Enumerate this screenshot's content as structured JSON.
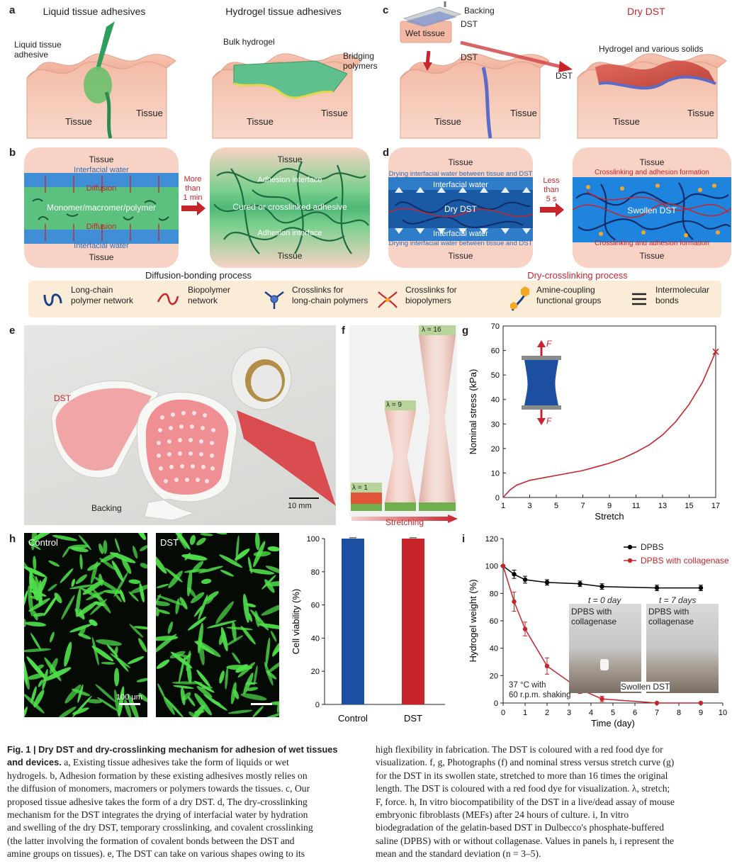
{
  "panels": {
    "a": {
      "letter": "a",
      "liquid_title": "Liquid tissue adhesives",
      "hydrogel_title": "Hydrogel tissue adhesives",
      "liquid_label": "Liquid tissue\nadhesive",
      "bulk_hydrogel": "Bulk hydrogel",
      "bridging": "Bridging\npolymers",
      "tissue": "Tissue"
    },
    "c": {
      "letter": "c",
      "backing": "Backing",
      "dst": "DST",
      "wet_tissue": "Wet tissue",
      "dry_dst": "Dry DST",
      "hydrogel_solids": "Hydrogel and various solids",
      "tissue": "Tissue"
    },
    "b": {
      "letter": "b",
      "tissue": "Tissue",
      "interfacial_water": "Interfacial water",
      "diffusion": "Diffusion",
      "monomer": "Monomer/macromer/polymer",
      "arrow_text": "More\nthan\n1 min",
      "adhesion_interface": "Adhesion interface",
      "cured": "Cured or crosslinked adhesive",
      "process": "Diffusion-bonding process"
    },
    "d": {
      "letter": "d",
      "tissue": "Tissue",
      "drying": "Drying interfacial water between tissue and DST",
      "interfacial_water": "Interfacial water",
      "dry_dst": "Dry DST",
      "arrow_text": "Less\nthan\n5 s",
      "crosslinking": "Crosslinking and adhesion formation",
      "swollen": "Swollen DST",
      "process": "Dry-crosslinking process"
    },
    "legend": [
      {
        "icon": "long-chain-icon",
        "label": "Long-chain\npolymer network"
      },
      {
        "icon": "biopolymer-icon",
        "label": "Biopolymer\nnetwork"
      },
      {
        "icon": "crosslink-long-icon",
        "label": "Crosslinks for\nlong-chain polymers"
      },
      {
        "icon": "crosslink-bio-icon",
        "label": "Crosslinks for\nbiopolymers"
      },
      {
        "icon": "amine-coupling-icon",
        "label": "Amine-coupling\nfunctional groups"
      },
      {
        "icon": "intermolecular-icon",
        "label": "Intermolecular\nbonds"
      }
    ],
    "e": {
      "letter": "e",
      "dst": "DST",
      "backing": "Backing",
      "scale": "10 mm"
    },
    "f": {
      "letter": "f",
      "l1": "λ = 1",
      "l9": "λ = 9",
      "l16": "λ = 16",
      "stretching": "Stretching"
    },
    "g": {
      "letter": "g",
      "F": "F"
    },
    "h": {
      "letter": "h",
      "control": "Control",
      "dst": "DST",
      "scale": "100 μm"
    },
    "i": {
      "letter": "i",
      "t0": "t = 0 day",
      "t7": "t = 7 days",
      "photo_label": "DPBS with\ncollagenase",
      "swollen": "Swollen DST",
      "condition": "37 °C with\n60 r.p.m. shaking"
    }
  },
  "chart_data": [
    {
      "id": "g",
      "type": "line",
      "xlabel": "Stretch",
      "ylabel": "Nominal stress (kPa)",
      "xlim": [
        1,
        17
      ],
      "ylim": [
        0,
        70
      ],
      "xticks": [
        1,
        3,
        5,
        7,
        9,
        11,
        13,
        15,
        17
      ],
      "yticks": [
        0,
        10,
        20,
        30,
        40,
        50,
        60,
        70
      ],
      "series": [
        {
          "x": [
            1,
            1.5,
            2,
            3,
            4,
            5,
            6,
            7,
            8,
            9,
            10,
            11,
            12,
            13,
            14,
            15,
            16,
            17
          ],
          "y": [
            0,
            3,
            5,
            7,
            8,
            9,
            10,
            11,
            12.5,
            14,
            16,
            18.5,
            21.5,
            25.5,
            31,
            38,
            47,
            59.5
          ]
        }
      ],
      "color": "#c8242b"
    },
    {
      "id": "h",
      "type": "bar",
      "categories": [
        "Control",
        "DST"
      ],
      "values": [
        100,
        100
      ],
      "errors": [
        0.5,
        0.5
      ],
      "colors": [
        "#1c4fa0",
        "#c8242b"
      ],
      "ylabel": "Cell viability (%)",
      "ylim": [
        0,
        100
      ],
      "yticks": [
        0,
        20,
        40,
        60,
        80,
        100
      ]
    },
    {
      "id": "i",
      "type": "line",
      "xlabel": "Time (day)",
      "ylabel": "Hydrogel weight (%)",
      "xlim": [
        0,
        10
      ],
      "ylim": [
        0,
        120
      ],
      "xticks": [
        0,
        1,
        2,
        3,
        4,
        5,
        6,
        7,
        8,
        9,
        10
      ],
      "yticks": [
        0,
        20,
        40,
        60,
        80,
        100,
        120
      ],
      "series": [
        {
          "name": "DPBS",
          "color": "#000000",
          "x": [
            0,
            0.5,
            1,
            2,
            3.5,
            4.5,
            7,
            9
          ],
          "y": [
            100,
            94,
            90,
            88,
            87,
            85,
            84,
            84
          ],
          "err": [
            0,
            3,
            2.5,
            2,
            2,
            2,
            2,
            2
          ]
        },
        {
          "name": "DPBS with collagenase",
          "color": "#c8242b",
          "x": [
            0,
            0.5,
            1,
            2,
            3.5,
            4.5,
            7,
            9
          ],
          "y": [
            100,
            74,
            54,
            27,
            10,
            3,
            0,
            0
          ],
          "err": [
            0,
            7,
            5,
            6,
            3,
            2,
            0,
            0
          ]
        }
      ]
    }
  ],
  "caption": {
    "left": [
      {
        "b": "Fig. 1 | Dry DST and dry-crosslinking mechanism for adhesion of wet tissues",
        "t": ""
      },
      {
        "b": "and devices.",
        "t": " a, Existing tissue adhesives take the form of liquids or wet"
      },
      {
        "b": "",
        "t": "hydrogels. b, Adhesion formation by these existing adhesives mostly relies on"
      },
      {
        "b": "",
        "t": "the diffusion of monomers, macromers or polymers towards the tissues. c, Our"
      },
      {
        "b": "",
        "t": "proposed tissue adhesive takes the form of a dry DST. d, The dry-crosslinking"
      },
      {
        "b": "",
        "t": "mechanism for the DST integrates the drying of interfacial water by hydration"
      },
      {
        "b": "",
        "t": "and swelling of the dry DST, temporary crosslinking, and covalent crosslinking"
      },
      {
        "b": "",
        "t": "(the latter involving the formation of covalent bonds between the DST and"
      },
      {
        "b": "",
        "t": "amine groups on tissues). e, The DST can take on various shapes owing to its"
      }
    ],
    "right": [
      "high flexibility in fabrication. The DST is coloured with a red food dye for",
      "visualization. f, g, Photographs (f) and nominal stress versus stretch curve (g)",
      "for the DST in its swollen state, stretched to more than 16 times the original",
      "length. The DST is coloured with a red food dye for visualization. λ, stretch;",
      "F, force. h, In vitro biocompatibility of the DST in a live/dead assay of mouse",
      "embryonic fibroblasts (MEFs) after 24 hours of culture. i, In vitro",
      "biodegradation of the gelatin-based DST in Dulbecco's phosphate-buffered",
      "saline (DPBS) with or without collagenase. Values in panels h, i represent the",
      "mean and the standard deviation (n = 3–5)."
    ]
  }
}
